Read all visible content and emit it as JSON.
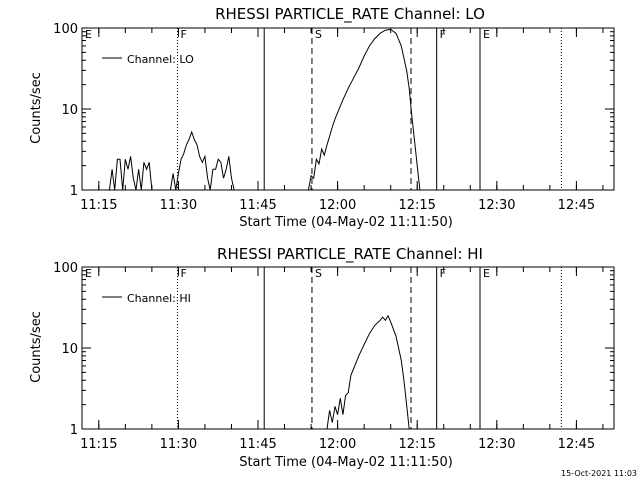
{
  "chart_data": [
    {
      "type": "line",
      "title": "RHESSI PARTICLE_RATE Channel: LO",
      "xlabel": "Start Time (04-May-02 11:11:50)",
      "ylabel": "Counts/sec",
      "y_scale": "log",
      "ylim": [
        1,
        100
      ],
      "y_ticks": [
        "1",
        "10",
        "100"
      ],
      "x_ticks": [
        "11:15",
        "11:30",
        "11:45",
        "12:00",
        "12:15",
        "12:30",
        "12:45"
      ],
      "legend": {
        "position": "top-left",
        "entries": [
          "Channel: LO"
        ]
      },
      "markers": [
        {
          "label": "E",
          "time": "11:11:50",
          "style": "none"
        },
        {
          "label": "F",
          "time": "11:29:50",
          "style": "dotted"
        },
        {
          "label": "",
          "time": "11:46:10",
          "style": "solid"
        },
        {
          "label": "S",
          "time": "11:55:10",
          "style": "dashed"
        },
        {
          "label": "",
          "time": "12:13:50",
          "style": "dashed"
        },
        {
          "label": "F",
          "time": "12:18:40",
          "style": "solid"
        },
        {
          "label": "E",
          "time": "12:26:50",
          "style": "solid"
        },
        {
          "label": "",
          "time": "12:42:10",
          "style": "dotted"
        }
      ],
      "series": [
        {
          "name": "Channel: LO",
          "points": [
            [
              "11:17:00",
              1
            ],
            [
              "11:17:30",
              1.8
            ],
            [
              "11:18:00",
              1
            ],
            [
              "11:18:30",
              2.4
            ],
            [
              "11:19:00",
              2.4
            ],
            [
              "11:19:30",
              1
            ],
            [
              "11:20:00",
              2.4
            ],
            [
              "11:20:30",
              1.8
            ],
            [
              "11:21:00",
              2.6
            ],
            [
              "11:21:30",
              1.4
            ],
            [
              "11:22:00",
              1
            ],
            [
              "11:22:30",
              1.8
            ],
            [
              "11:23:00",
              1
            ],
            [
              "11:23:30",
              2.2
            ],
            [
              "11:24:00",
              1.8
            ],
            [
              "11:24:30",
              2.2
            ],
            [
              "11:25:00",
              1
            ],
            [
              "11:28:30",
              1
            ],
            [
              "11:29:00",
              1.6
            ],
            [
              "11:29:30",
              1
            ],
            [
              "11:30:00",
              1.6
            ],
            [
              "11:30:30",
              2.4
            ],
            [
              "11:31:00",
              2.8
            ],
            [
              "11:31:30",
              3.6
            ],
            [
              "11:32:00",
              4.2
            ],
            [
              "11:32:30",
              5.2
            ],
            [
              "11:33:00",
              4.2
            ],
            [
              "11:33:30",
              3.6
            ],
            [
              "11:34:00",
              2.6
            ],
            [
              "11:34:30",
              2.2
            ],
            [
              "11:35:00",
              2.6
            ],
            [
              "11:35:30",
              1.4
            ],
            [
              "11:36:00",
              1
            ],
            [
              "11:36:30",
              1.8
            ],
            [
              "11:37:00",
              1.8
            ],
            [
              "11:37:30",
              2.4
            ],
            [
              "11:38:00",
              2.2
            ],
            [
              "11:38:30",
              1.4
            ],
            [
              "11:39:00",
              1.8
            ],
            [
              "11:39:30",
              2.6
            ],
            [
              "11:40:00",
              1.4
            ],
            [
              "11:40:30",
              1
            ],
            [
              "11:54:30",
              1
            ],
            [
              "11:55:00",
              1.5
            ],
            [
              "11:55:30",
              1.4
            ],
            [
              "11:56:00",
              2.4
            ],
            [
              "11:56:30",
              2.1
            ],
            [
              "11:57:00",
              3.2
            ],
            [
              "11:57:30",
              2.7
            ],
            [
              "11:58:00",
              3.6
            ],
            [
              "11:58:30",
              4.6
            ],
            [
              "11:59:00",
              6
            ],
            [
              "11:59:30",
              7.5
            ],
            [
              "12:00:00",
              9
            ],
            [
              "12:01:00",
              13
            ],
            [
              "12:02:00",
              18
            ],
            [
              "12:03:00",
              24
            ],
            [
              "12:04:00",
              32
            ],
            [
              "12:05:00",
              45
            ],
            [
              "12:06:00",
              60
            ],
            [
              "12:07:00",
              74
            ],
            [
              "12:08:00",
              86
            ],
            [
              "12:09:00",
              94
            ],
            [
              "12:10:00",
              96
            ],
            [
              "12:11:00",
              86
            ],
            [
              "12:12:00",
              60
            ],
            [
              "12:13:00",
              30
            ],
            [
              "12:13:30",
              18
            ],
            [
              "12:14:00",
              8
            ],
            [
              "12:14:30",
              4
            ],
            [
              "12:15:00",
              2
            ],
            [
              "12:15:30",
              1
            ]
          ]
        }
      ]
    },
    {
      "type": "line",
      "title": "RHESSI PARTICLE_RATE Channel: HI",
      "xlabel": "Start Time (04-May-02 11:11:50)",
      "ylabel": "Counts/sec",
      "y_scale": "log",
      "ylim": [
        1,
        100
      ],
      "y_ticks": [
        "1",
        "10",
        "100"
      ],
      "x_ticks": [
        "11:15",
        "11:30",
        "11:45",
        "12:00",
        "12:15",
        "12:30",
        "12:45"
      ],
      "legend": {
        "position": "top-left",
        "entries": [
          "Channel: HI"
        ]
      },
      "markers": [
        {
          "label": "E",
          "time": "11:11:50",
          "style": "none"
        },
        {
          "label": "F",
          "time": "11:29:50",
          "style": "dotted"
        },
        {
          "label": "",
          "time": "11:46:10",
          "style": "solid"
        },
        {
          "label": "S",
          "time": "11:55:10",
          "style": "dashed"
        },
        {
          "label": "",
          "time": "12:13:50",
          "style": "dashed"
        },
        {
          "label": "F",
          "time": "12:18:40",
          "style": "solid"
        },
        {
          "label": "E",
          "time": "12:26:50",
          "style": "solid"
        },
        {
          "label": "",
          "time": "12:42:10",
          "style": "dotted"
        }
      ],
      "series": [
        {
          "name": "Channel: HI",
          "points": [
            [
              "11:58:00",
              1
            ],
            [
              "11:58:30",
              1.7
            ],
            [
              "11:59:00",
              1.2
            ],
            [
              "11:59:30",
              1.9
            ],
            [
              "12:00:00",
              1.5
            ],
            [
              "12:00:30",
              2.4
            ],
            [
              "12:01:00",
              1.5
            ],
            [
              "12:01:30",
              2.6
            ],
            [
              "12:02:00",
              2.8
            ],
            [
              "12:02:30",
              4.6
            ],
            [
              "12:03:00",
              5.5
            ],
            [
              "12:04:00",
              8
            ],
            [
              "12:05:00",
              11
            ],
            [
              "12:06:00",
              15
            ],
            [
              "12:07:00",
              19
            ],
            [
              "12:08:00",
              22
            ],
            [
              "12:08:30",
              24
            ],
            [
              "12:09:00",
              22
            ],
            [
              "12:09:30",
              25
            ],
            [
              "12:10:00",
              21
            ],
            [
              "12:11:00",
              14
            ],
            [
              "12:12:00",
              7
            ],
            [
              "12:12:30",
              4
            ],
            [
              "12:13:00",
              2
            ],
            [
              "12:13:30",
              1
            ]
          ]
        }
      ]
    }
  ],
  "footer": {
    "timestamp": "15-Oct-2021 11:03"
  }
}
